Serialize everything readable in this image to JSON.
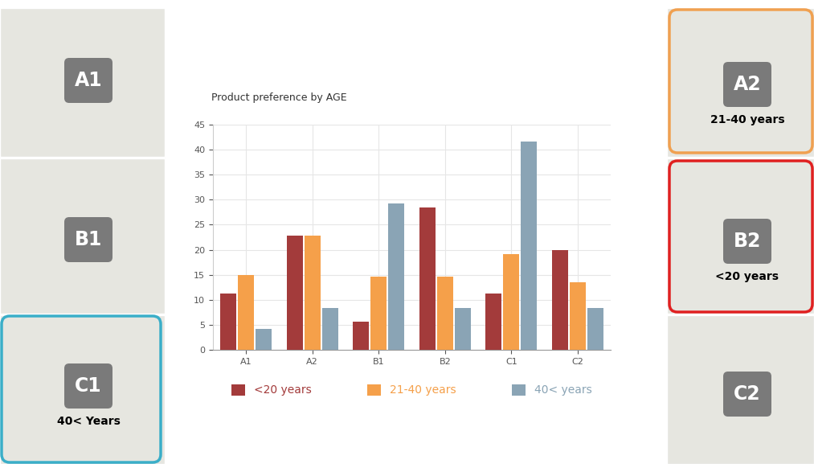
{
  "chart_data": {
    "type": "bar",
    "title": "Product preference by AGE",
    "categories": [
      "A1",
      "A2",
      "B1",
      "B2",
      "C1",
      "C2"
    ],
    "series": [
      {
        "name": "<20 years",
        "color": "#a33b3b",
        "values": [
          11.3,
          22.9,
          5.7,
          28.5,
          11.3,
          20.0
        ]
      },
      {
        "name": "21-40 years",
        "color": "#f5a04a",
        "values": [
          15.0,
          22.9,
          14.6,
          14.6,
          19.1,
          13.5
        ]
      },
      {
        "name": "40< years",
        "color": "#8aa4b5",
        "values": [
          4.2,
          8.3,
          29.2,
          8.3,
          41.7,
          8.3
        ]
      }
    ],
    "ylim": [
      0,
      45
    ],
    "yticks": [
      0,
      5,
      10,
      15,
      20,
      25,
      30,
      35,
      40,
      45
    ],
    "grid": true,
    "legend": "lower center"
  },
  "panels": [
    {
      "label": "A1"
    },
    {
      "label": "B1"
    },
    {
      "label": "C1",
      "note": "40< Years",
      "color": "#3aaec8"
    },
    {
      "label": "A2",
      "note": "21-40 years",
      "color": "#f0a050"
    },
    {
      "label": "B2",
      "note": "<20 years",
      "color": "#e02020"
    },
    {
      "label": "C2"
    }
  ]
}
